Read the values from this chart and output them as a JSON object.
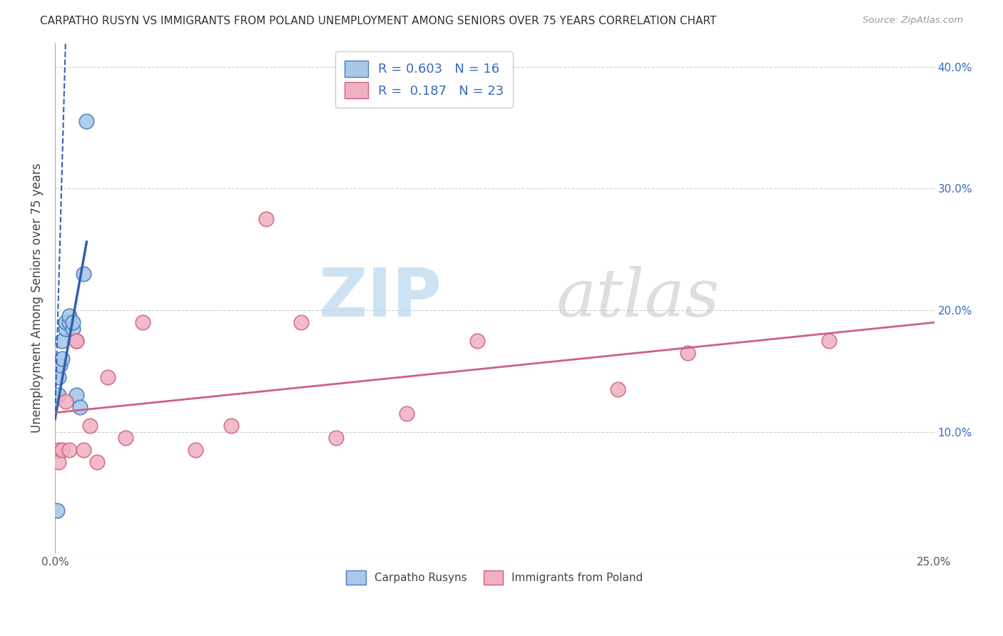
{
  "title": "CARPATHO RUSYN VS IMMIGRANTS FROM POLAND UNEMPLOYMENT AMONG SENIORS OVER 75 YEARS CORRELATION CHART",
  "source": "Source: ZipAtlas.com",
  "ylabel": "Unemployment Among Seniors over 75 years",
  "xlim": [
    0.0,
    0.25
  ],
  "ylim": [
    0.0,
    0.42
  ],
  "x_ticks": [
    0.0,
    0.25
  ],
  "x_tick_labels": [
    "0.0%",
    "25.0%"
  ],
  "y_ticks": [
    0.0,
    0.1,
    0.2,
    0.3,
    0.4
  ],
  "y_tick_labels_left": [
    "",
    "",
    "",
    "",
    ""
  ],
  "y_tick_labels_right": [
    "",
    "10.0%",
    "20.0%",
    "30.0%",
    "40.0%"
  ],
  "legend_labels": [
    "Carpatho Rusyns",
    "Immigrants from Poland"
  ],
  "blue_R": 0.603,
  "blue_N": 16,
  "pink_R": 0.187,
  "pink_N": 23,
  "blue_color": "#a8c8e8",
  "pink_color": "#f0b0c0",
  "blue_edge_color": "#4a7cc0",
  "pink_edge_color": "#d06080",
  "blue_line_color": "#3060b0",
  "pink_line_color": "#d06080",
  "blue_x": [
    0.0005,
    0.001,
    0.001,
    0.0015,
    0.002,
    0.002,
    0.003,
    0.003,
    0.004,
    0.004,
    0.005,
    0.005,
    0.006,
    0.007,
    0.008,
    0.009
  ],
  "blue_y": [
    0.035,
    0.13,
    0.145,
    0.155,
    0.16,
    0.175,
    0.185,
    0.19,
    0.19,
    0.195,
    0.185,
    0.19,
    0.13,
    0.12,
    0.23,
    0.355
  ],
  "pink_x": [
    0.001,
    0.001,
    0.002,
    0.003,
    0.004,
    0.006,
    0.006,
    0.008,
    0.01,
    0.012,
    0.015,
    0.02,
    0.025,
    0.04,
    0.05,
    0.06,
    0.07,
    0.08,
    0.1,
    0.12,
    0.16,
    0.18,
    0.22
  ],
  "pink_y": [
    0.085,
    0.075,
    0.085,
    0.125,
    0.085,
    0.175,
    0.175,
    0.085,
    0.105,
    0.075,
    0.145,
    0.095,
    0.19,
    0.085,
    0.105,
    0.275,
    0.19,
    0.095,
    0.115,
    0.175,
    0.135,
    0.165,
    0.175
  ],
  "watermark_zip": "ZIP",
  "watermark_atlas": "atlas",
  "background_color": "#ffffff",
  "grid_color": "#cccccc"
}
